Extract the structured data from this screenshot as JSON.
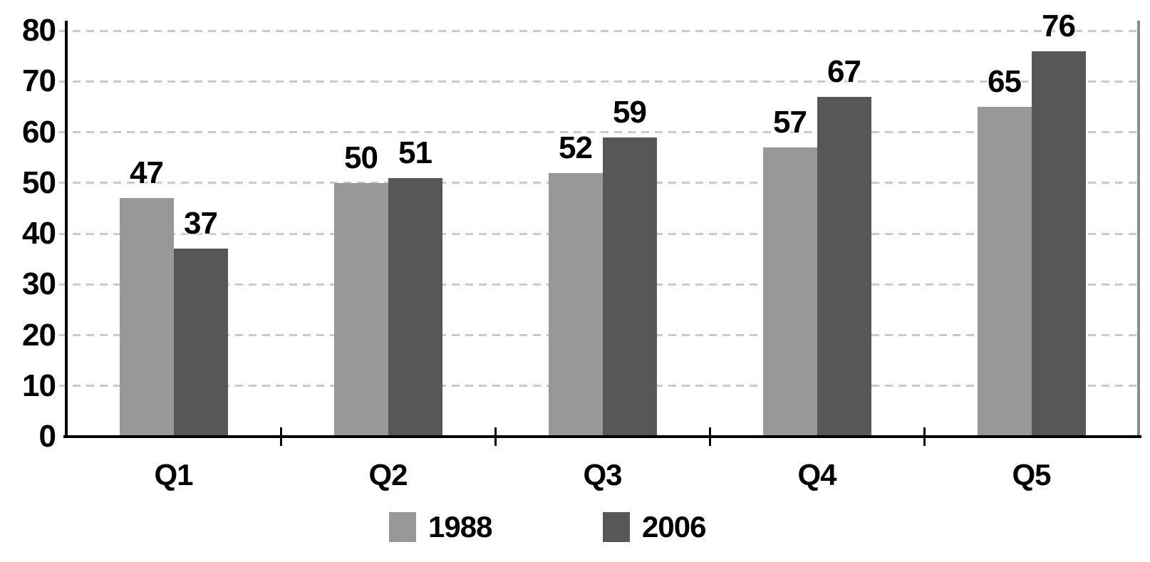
{
  "chart_data": {
    "type": "bar",
    "title": "",
    "xlabel": "",
    "ylabel": "",
    "categories": [
      "Q1",
      "Q2",
      "Q3",
      "Q4",
      "Q5"
    ],
    "series": [
      {
        "name": "1988",
        "color": "#989898",
        "values": [
          47,
          50,
          52,
          57,
          65
        ]
      },
      {
        "name": "2006",
        "color": "#575757",
        "values": [
          37,
          51,
          59,
          67,
          76
        ]
      }
    ],
    "ylim": [
      0,
      80
    ],
    "ytick_step": 10,
    "yticks": [
      0,
      10,
      20,
      30,
      40,
      50,
      60,
      70,
      80
    ],
    "grid": "horizontal-dashed",
    "value_labels": true,
    "legend_position": "bottom"
  },
  "colors": {
    "background": "#ffffff",
    "axis": "#000000",
    "gridline": "#cacaca",
    "plot_right_border": "#8c8c8c",
    "label_text": "#000000"
  }
}
